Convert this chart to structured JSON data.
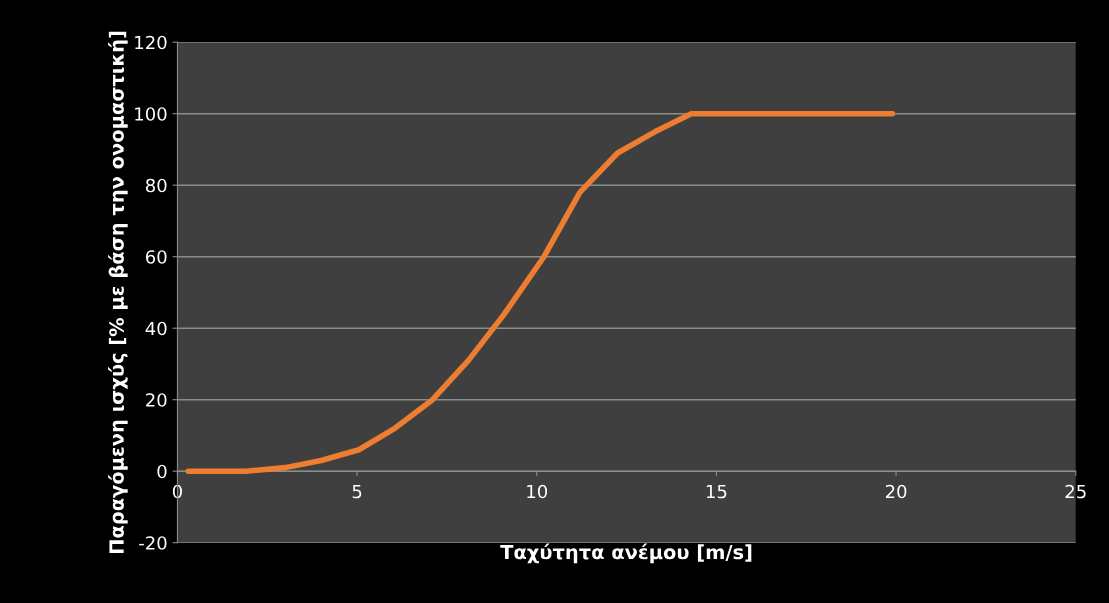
{
  "chart_data": {
    "type": "line",
    "xlabel": "Ταχύτητα ανέμου [m/s]",
    "ylabel": "Παραγόμενη ισχύς [% με βάση την ονομαστική]",
    "x": [
      0.3,
      1.9,
      3.0,
      4.0,
      5.05,
      6.05,
      7.1,
      8.1,
      9.1,
      10.2,
      11.2,
      12.25,
      13.3,
      14.3,
      19.9
    ],
    "series": [
      {
        "color": "#ed7d31",
        "values": [
          0,
          0,
          1,
          3,
          6,
          12,
          20,
          31,
          44,
          60,
          78,
          89,
          95,
          100,
          100
        ]
      }
    ],
    "xlim": [
      0,
      25
    ],
    "xticks": [
      0,
      5,
      10,
      15,
      20,
      25
    ],
    "ylim": [
      -20,
      120
    ],
    "yticks": [
      -20,
      0,
      20,
      40,
      60,
      80,
      100,
      120
    ],
    "grid": "y",
    "legend": false,
    "marker": "none",
    "line_style": "solid"
  }
}
